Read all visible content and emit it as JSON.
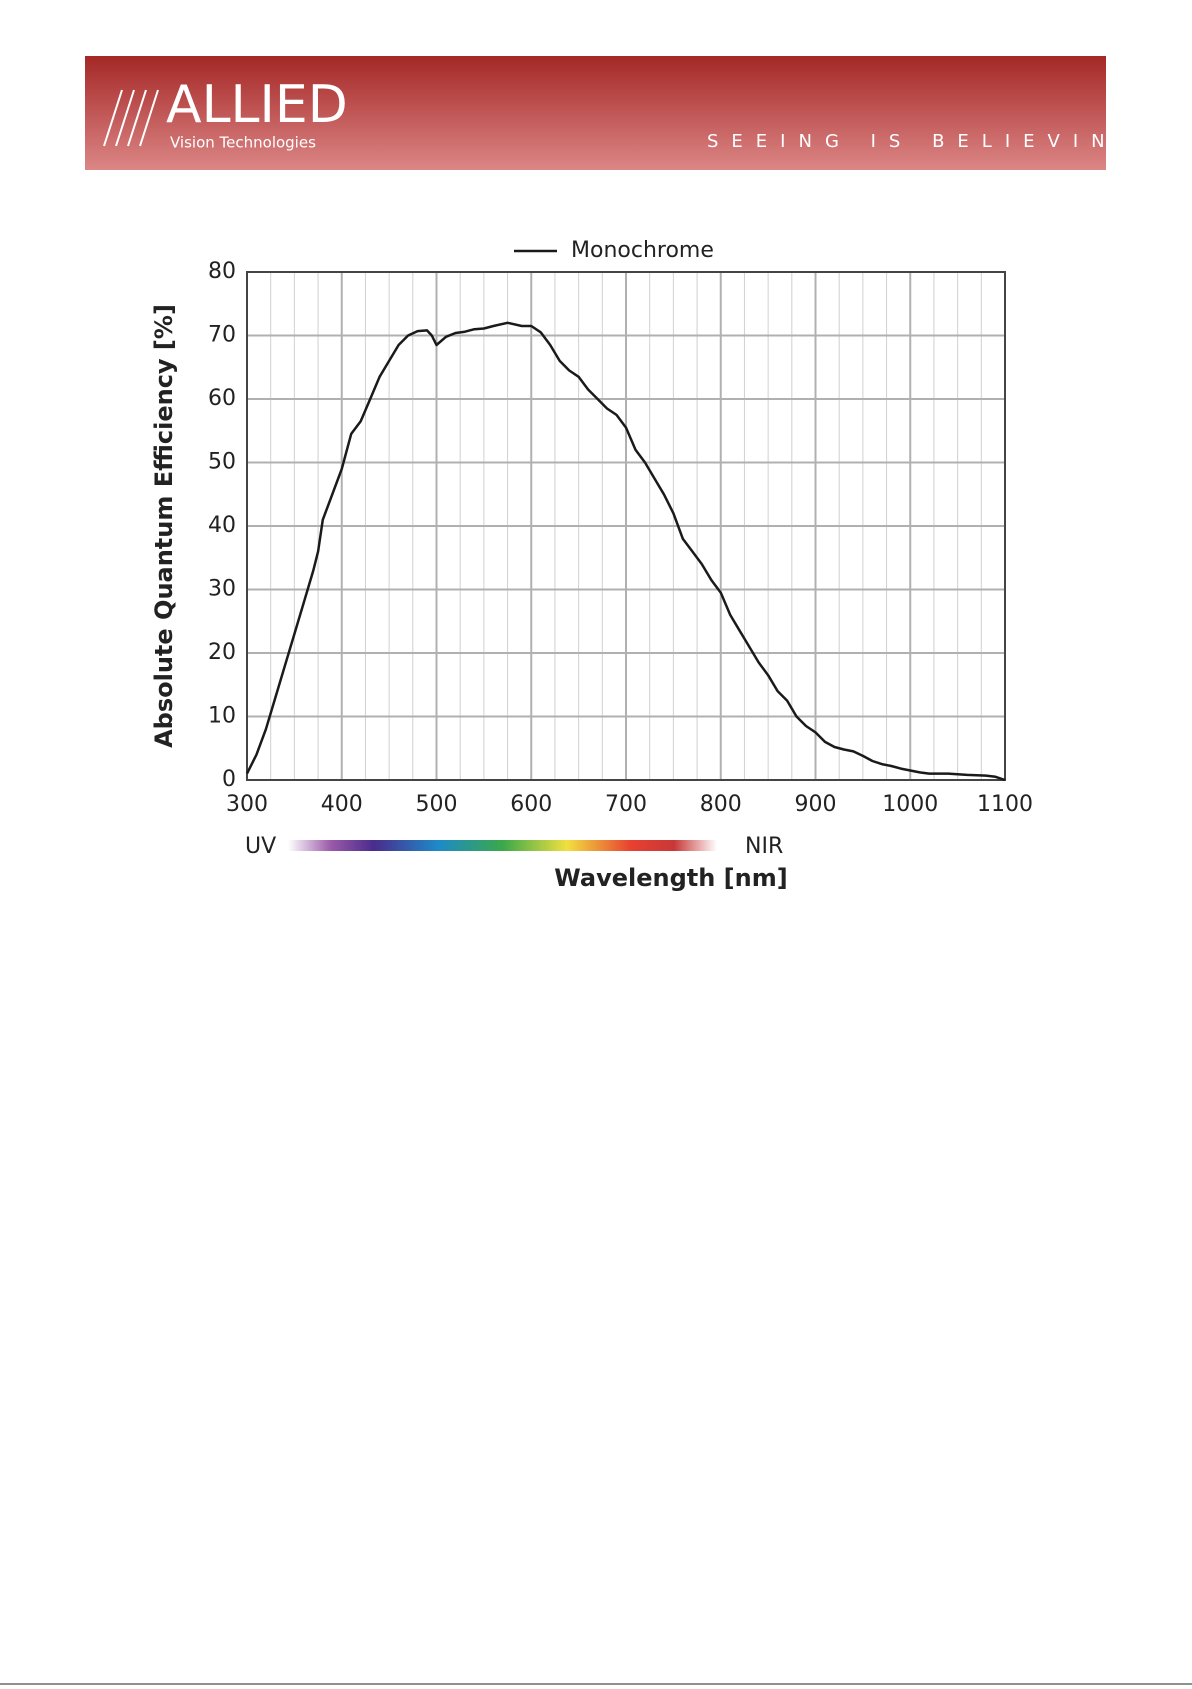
{
  "header": {
    "logo": "ALLIED",
    "logo_sub": "Vision Technologies",
    "tagline": "SEEING IS BELIEVING"
  },
  "chart_data": {
    "type": "line",
    "x_label": "Wavelength [nm]",
    "y_label": "Absolute Quantum Efficiency [%]",
    "spectrum_labels": [
      "UV",
      "NIR"
    ],
    "legend": "top",
    "x": [
      300,
      310,
      320,
      330,
      340,
      350,
      360,
      370,
      375,
      380,
      390,
      400,
      410,
      420,
      430,
      440,
      450,
      460,
      470,
      480,
      490,
      495,
      500,
      510,
      520,
      530,
      540,
      550,
      560,
      575,
      590,
      600,
      610,
      620,
      630,
      640,
      650,
      660,
      670,
      680,
      690,
      700,
      710,
      720,
      730,
      740,
      750,
      760,
      770,
      780,
      790,
      800,
      810,
      820,
      830,
      840,
      850,
      860,
      870,
      880,
      890,
      900,
      910,
      920,
      930,
      940,
      950,
      960,
      970,
      980,
      990,
      1000,
      1010,
      1020,
      1040,
      1060,
      1080,
      1090,
      1100
    ],
    "series": [
      {
        "name": "Monochrome",
        "color": "#1a1a1a",
        "values": [
          1,
          4,
          8,
          13,
          18,
          23,
          28,
          33,
          36,
          41,
          45,
          49,
          54.5,
          56.5,
          60,
          63.5,
          66,
          68.5,
          70,
          70.7,
          70.8,
          70,
          68.5,
          69.8,
          70.4,
          70.6,
          71,
          71.1,
          71.5,
          72,
          71.5,
          71.5,
          70.5,
          68.5,
          66,
          64.5,
          63.5,
          61.5,
          60,
          58.5,
          57.5,
          55.5,
          52,
          50,
          47.5,
          45,
          42,
          38,
          36,
          34,
          31.5,
          29.5,
          26,
          23.5,
          21,
          18.5,
          16.5,
          14,
          12.5,
          10,
          8.5,
          7.5,
          6,
          5.2,
          4.8,
          4.5,
          3.8,
          3,
          2.5,
          2.2,
          1.8,
          1.5,
          1.2,
          1,
          1,
          0.8,
          0.7,
          0.5,
          0
        ]
      }
    ],
    "xlim": [
      300,
      1100
    ],
    "ylim": [
      0,
      80
    ],
    "xticks": [
      300,
      400,
      500,
      600,
      700,
      800,
      900,
      1000,
      1100
    ],
    "xminorticks": [
      325,
      350,
      375,
      425,
      450,
      475,
      525,
      550,
      575,
      625,
      650,
      675,
      725,
      750,
      775,
      825,
      850,
      875,
      925,
      950,
      975,
      1025,
      1050,
      1075
    ],
    "yticks": [
      0,
      10,
      20,
      30,
      40,
      50,
      60,
      70,
      80
    ],
    "grid": true
  }
}
